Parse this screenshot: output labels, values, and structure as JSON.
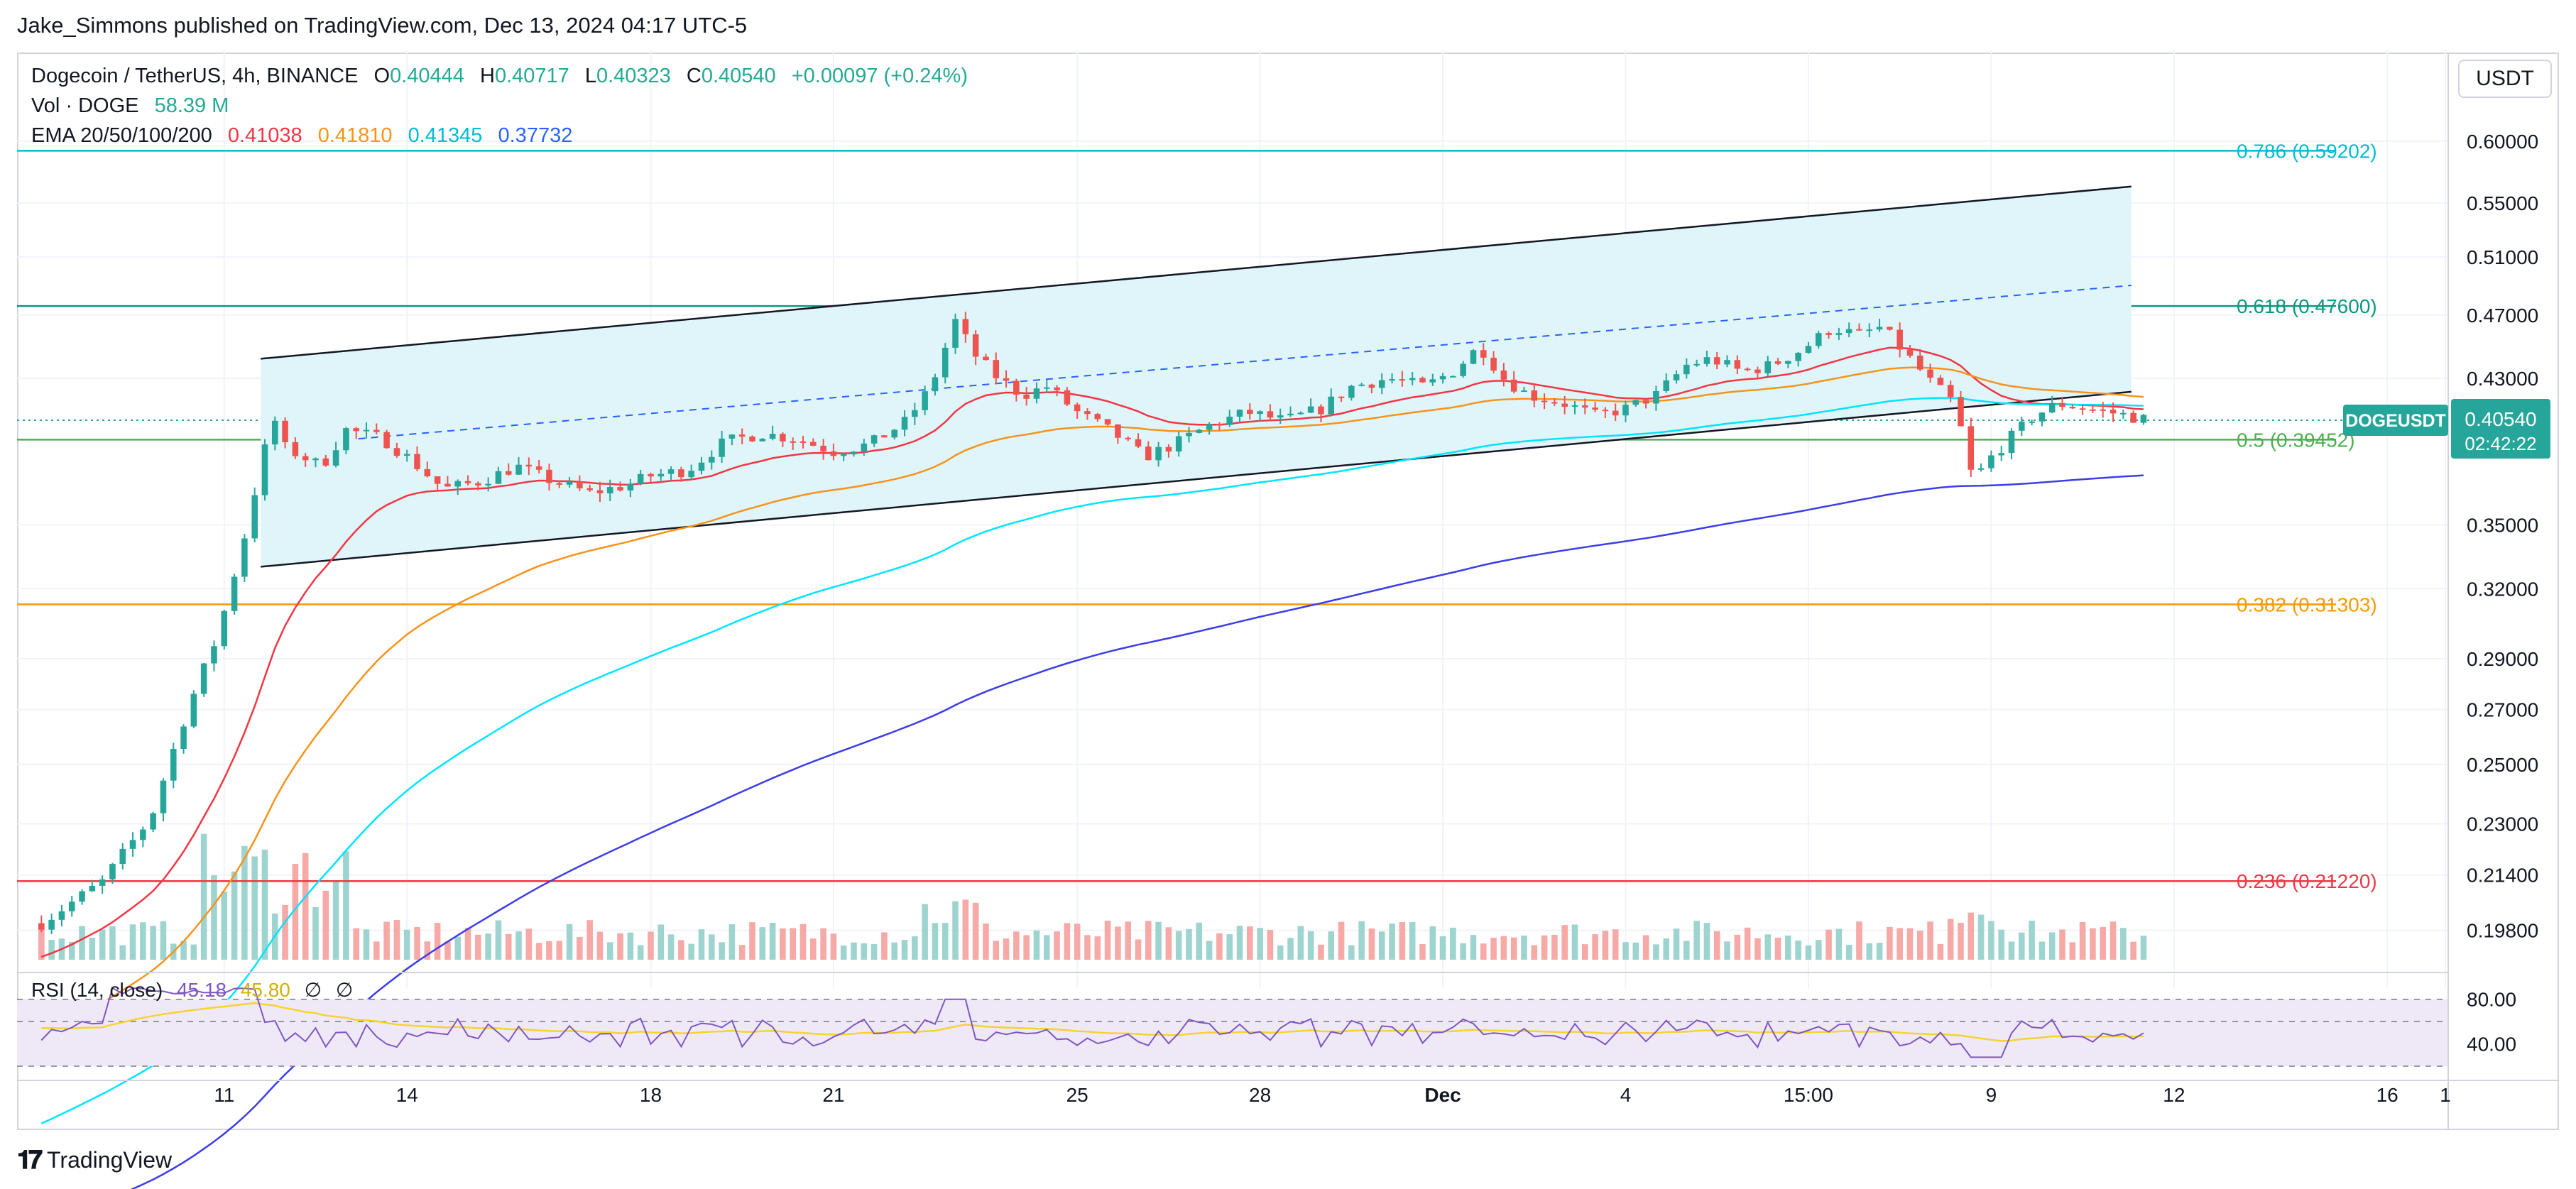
{
  "header": {
    "published": "Jake_Simmons published on TradingView.com, Dec 13, 2024 04:17 UTC-5"
  },
  "footer": {
    "brand": "TradingView"
  },
  "legend": {
    "symbol": "Dogecoin / TetherUS, 4h, BINANCE",
    "open_label": "O",
    "open": "0.40444",
    "high_label": "H",
    "high": "0.40717",
    "low_label": "L",
    "low": "0.40323",
    "close_label": "C",
    "close": "0.40540",
    "change": "+0.00097 (+0.24%)",
    "vol_label": "Vol · DOGE",
    "vol": "58.39 M",
    "ema_label": "EMA 20/50/100/200",
    "ema20": "0.41038",
    "ema50": "0.41810",
    "ema100": "0.41345",
    "ema200": "0.37732"
  },
  "price_scale": {
    "currency": "USDT"
  },
  "price_badge": {
    "symbol": "DOGEUSDT",
    "price": "0.40540",
    "countdown": "02:42:22"
  },
  "rsi": {
    "label": "RSI (14, close)",
    "value": "45.18",
    "ma_value": "45.80",
    "sym1": "∅",
    "sym2": "∅",
    "upper": "80.00",
    "lower": "40.00"
  },
  "colors": {
    "up": "#26a69a",
    "down": "#ef5350",
    "ema20": "#f23645",
    "ema50": "#f7931a",
    "ema100": "#00e5ff",
    "ema200": "#3d3de8",
    "fib0786": "#00bcd4",
    "fib0618": "#089981",
    "fib05": "#4caf50",
    "fib0382": "#ff9800",
    "fib0236": "#f23645",
    "rsi_line": "#7e57c2",
    "rsi_ma": "#f5d332"
  },
  "chart_data": {
    "type": "candlestick",
    "title": "Dogecoin / TetherUS, 4h, BINANCE",
    "timeframe": "4h",
    "x_tick_labels": [
      "11",
      "14",
      "18",
      "21",
      "25",
      "28",
      "Dec",
      "4",
      "15:00",
      "9",
      "12",
      "16",
      "1"
    ],
    "y_tick_labels": [
      "0.60000",
      "0.55000",
      "0.51000",
      "0.47000",
      "0.43000",
      "0.35000",
      "0.32000",
      "0.29000",
      "0.27000",
      "0.25000",
      "0.23000",
      "0.21400",
      "0.19800"
    ],
    "ylim": [
      0.19,
      0.63
    ],
    "scale": "log",
    "fib_levels": [
      {
        "ratio": "0.786",
        "label": "0.786 (0.59202)",
        "price": 0.59202
      },
      {
        "ratio": "0.618",
        "label": "0.618 (0.47600)",
        "price": 0.476
      },
      {
        "ratio": "0.5",
        "label": "0.5 (0.39452)",
        "price": 0.39452
      },
      {
        "ratio": "0.382",
        "label": "0.382 (0.31303)",
        "price": 0.31303
      },
      {
        "ratio": "0.236",
        "label": "0.236 (0.21220)",
        "price": 0.2122
      }
    ],
    "last_price": 0.4054,
    "channel": {
      "upper": [
        [
          11.6,
          0.442
        ],
        [
          32.9,
          0.563
        ]
      ],
      "lower": [
        [
          11.6,
          0.33
        ],
        [
          32.9,
          0.422
        ]
      ],
      "mid": [
        [
          13.2,
          0.395
        ],
        [
          32.9,
          0.49
        ]
      ]
    },
    "candles_anchor": [
      [
        8.0,
        0.2
      ],
      [
        9.0,
        0.212
      ],
      [
        9.8,
        0.232
      ],
      [
        10.4,
        0.27
      ],
      [
        10.9,
        0.3
      ],
      [
        11.3,
        0.34
      ],
      [
        11.6,
        0.38
      ],
      [
        11.8,
        0.408
      ],
      [
        12.0,
        0.39
      ],
      [
        12.6,
        0.38
      ],
      [
        13.0,
        0.4
      ],
      [
        13.6,
        0.395
      ],
      [
        14.0,
        0.385
      ],
      [
        14.6,
        0.368
      ],
      [
        15.2,
        0.372
      ],
      [
        15.8,
        0.38
      ],
      [
        16.4,
        0.372
      ],
      [
        17.0,
        0.366
      ],
      [
        17.6,
        0.37
      ],
      [
        18.0,
        0.375
      ],
      [
        18.6,
        0.378
      ],
      [
        19.2,
        0.393
      ],
      [
        19.8,
        0.398
      ],
      [
        20.4,
        0.395
      ],
      [
        21.0,
        0.388
      ],
      [
        21.6,
        0.392
      ],
      [
        22.2,
        0.405
      ],
      [
        22.6,
        0.425
      ],
      [
        23.0,
        0.466
      ],
      [
        23.3,
        0.445
      ],
      [
        23.7,
        0.43
      ],
      [
        24.1,
        0.42
      ],
      [
        24.5,
        0.425
      ],
      [
        25.0,
        0.41
      ],
      [
        25.6,
        0.398
      ],
      [
        26.1,
        0.385
      ],
      [
        26.6,
        0.392
      ],
      [
        27.2,
        0.403
      ],
      [
        27.8,
        0.41
      ],
      [
        28.4,
        0.405
      ],
      [
        29.0,
        0.412
      ],
      [
        29.5,
        0.425
      ],
      [
        30.1,
        0.43
      ],
      [
        30.7,
        0.425
      ],
      [
        31.2,
        0.435
      ],
      [
        31.6,
        0.45
      ],
      [
        32.0,
        0.43
      ],
      [
        32.4,
        0.42
      ],
      [
        33.0,
        0.415
      ],
      [
        33.5,
        0.408
      ],
      [
        34.0,
        0.412
      ],
      [
        34.5,
        0.42
      ],
      [
        35.0,
        0.438
      ],
      [
        35.4,
        0.442
      ],
      [
        35.9,
        0.434
      ],
      [
        36.4,
        0.438
      ],
      [
        36.9,
        0.448
      ],
      [
        37.4,
        0.462
      ],
      [
        37.8,
        0.457
      ],
      [
        38.2,
        0.462
      ],
      [
        38.6,
        0.445
      ],
      [
        39.0,
        0.428
      ],
      [
        39.4,
        0.415
      ],
      [
        39.7,
        0.372
      ],
      [
        40.0,
        0.385
      ],
      [
        40.3,
        0.395
      ],
      [
        40.7,
        0.408
      ],
      [
        41.1,
        0.415
      ],
      [
        41.6,
        0.412
      ],
      [
        42.1,
        0.409
      ],
      [
        42.5,
        0.406
      ]
    ],
    "series": [
      {
        "name": "EMA 20",
        "value": 0.41038
      },
      {
        "name": "EMA 50",
        "value": 0.4181
      },
      {
        "name": "EMA 100",
        "value": 0.41345
      },
      {
        "name": "EMA 200",
        "value": 0.37732
      },
      {
        "name": "Vol · DOGE",
        "value": 58390000
      }
    ],
    "rsi": {
      "value": 45.18,
      "ma": 45.8,
      "upper_band": 80,
      "lower_band": 40
    }
  }
}
